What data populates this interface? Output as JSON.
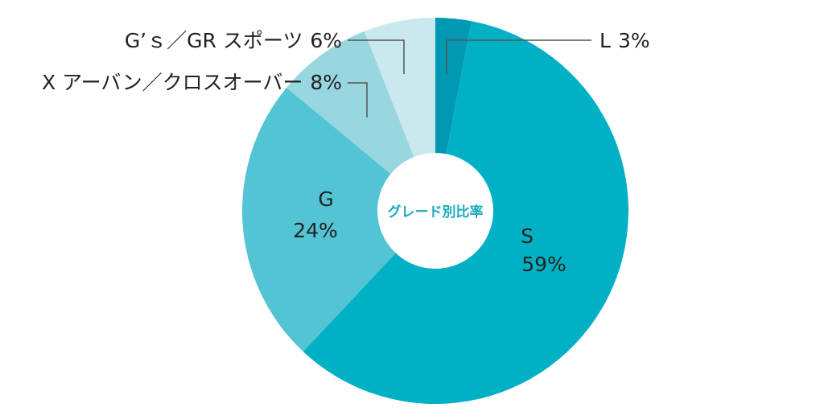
{
  "chart_data": {
    "type": "donut",
    "title": "グレード別比率",
    "categories": [
      "L",
      "S",
      "G",
      "X アーバン／クロスオーバー",
      "G’ｓ／GR スポーツ"
    ],
    "values": [
      3,
      59,
      24,
      8,
      6
    ],
    "value_labels": [
      "3%",
      "59%",
      "24%",
      "8%",
      "6%"
    ],
    "colors": [
      "#0098b2",
      "#00b1c5",
      "#52c4d3",
      "#98d6e0",
      "#c9e9ef"
    ]
  }
}
